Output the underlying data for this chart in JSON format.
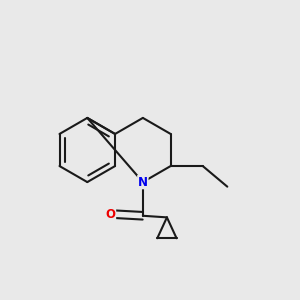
{
  "bg_color": "#e9e9e9",
  "bond_color": "#1a1a1a",
  "bond_width": 1.5,
  "N_color": "#0000ee",
  "O_color": "#ee0000",
  "font_size_atom": 8.5
}
